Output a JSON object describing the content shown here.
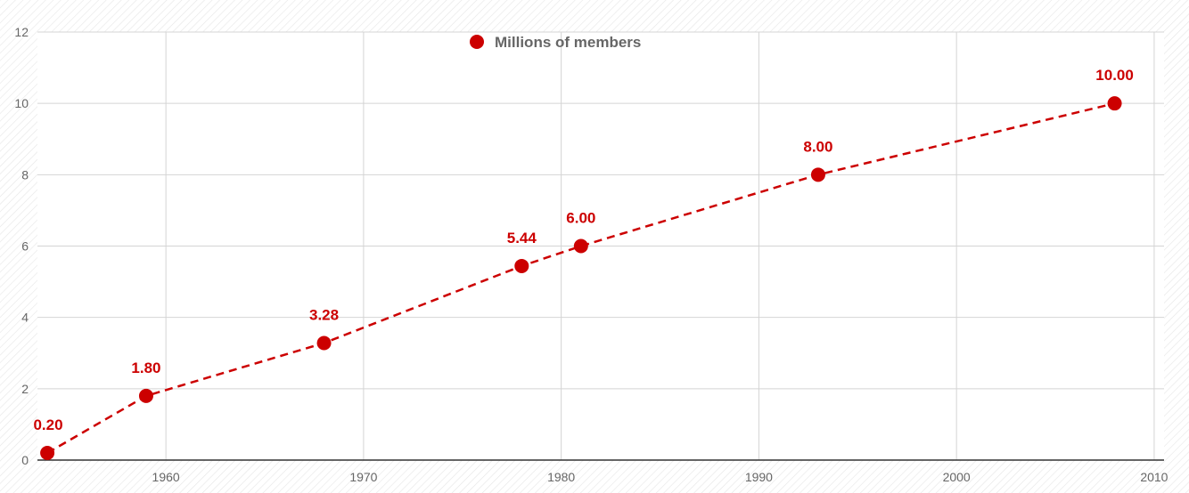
{
  "chart_data": {
    "type": "line",
    "title": "",
    "xlabel": "",
    "ylabel": "",
    "xlim": [
      1953.5,
      2010.5
    ],
    "ylim": [
      0,
      12
    ],
    "x_ticks": [
      1960,
      1970,
      1980,
      1990,
      2000,
      2010
    ],
    "y_ticks": [
      0,
      2,
      4,
      6,
      8,
      10,
      12
    ],
    "x_tick_labels": [
      "1960",
      "1970",
      "1980",
      "1990",
      "2000",
      "2010"
    ],
    "y_tick_labels": [
      "0",
      "2",
      "4",
      "6",
      "8",
      "10",
      "12"
    ],
    "grid": true,
    "legend": "top-center",
    "series": [
      {
        "name": "Millions of members",
        "color": "#cc0000",
        "line_style": "dashed",
        "x": [
          1954,
          1959,
          1968,
          1978,
          1981,
          1993,
          2008
        ],
        "values": [
          0.2,
          1.8,
          3.28,
          5.44,
          6.0,
          8.0,
          10.0
        ],
        "labels": [
          "0.20",
          "1.80",
          "3.28",
          "5.44",
          "6.00",
          "8.00",
          "10.00"
        ]
      }
    ]
  }
}
